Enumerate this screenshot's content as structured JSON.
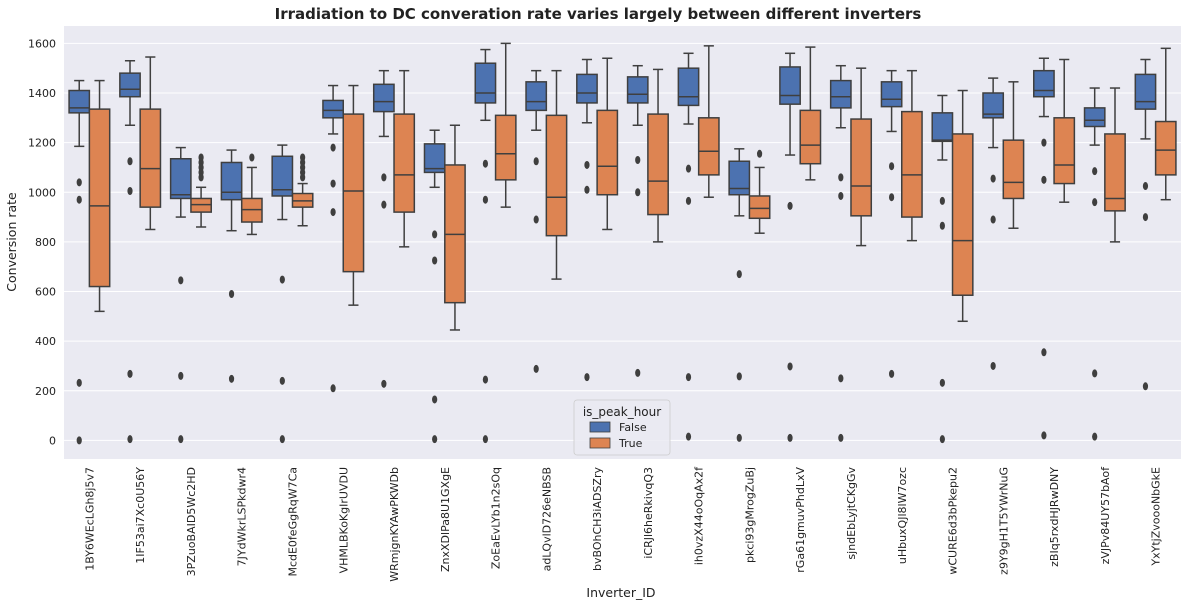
{
  "chart_data": {
    "type": "boxplot",
    "title": "Irradiation to DC converation rate varies largely between different inverters",
    "xlabel": "Inverter_ID",
    "ylabel": "Conversion rate",
    "ylim": [
      -75,
      1670
    ],
    "yticks": [
      0,
      200,
      400,
      600,
      800,
      1000,
      1200,
      1400,
      1600
    ],
    "grid": true,
    "legend": {
      "title": "is_peak_hour",
      "placement": "bottom-center",
      "entries": [
        {
          "name": "False",
          "color": "#4c72b0"
        },
        {
          "name": "True",
          "color": "#dd8452"
        }
      ]
    },
    "categories": [
      "1BY6WEcLGh8j5v7",
      "1IF53ai7Xc0U56Y",
      "3PZuoBAID5Wc2HD",
      "7JYdWkrLSPkdwr4",
      "McdE0feGgRqW7Ca",
      "VHMLBKoKgIrUVDU",
      "WRmjgnKYAwPKWDb",
      "ZnxXDlPa8U1GXgE",
      "ZoEaEvLYb1n2sOq",
      "adLQvlD726eNBSB",
      "bvBOhCH3iADSZry",
      "iCRJl6heRkivqQ3",
      "ih0vzX44oOqAx2f",
      "pkci93gMrogZuBj",
      "rGa61gmuvPhdLxV",
      "sjndEbLyjtCKgGv",
      "uHbuxQJl8lW7ozc",
      "wCURE6d3bPkepu2",
      "z9Y9gH1T5YWrNuG",
      "zBIq5rxdHJRwDNY",
      "zVJPv84UY57bAof",
      "YxYtjZvoooNbGkE"
    ],
    "series": [
      {
        "name": "False",
        "color": "#4c72b0",
        "boxes": [
          {
            "q1": 1320,
            "median": 1340,
            "q3": 1410,
            "whislo": 1185,
            "whishi": 1450,
            "fliers": [
              1040,
              970,
              232,
              0
            ]
          },
          {
            "q1": 1385,
            "median": 1415,
            "q3": 1480,
            "whislo": 1270,
            "whishi": 1530,
            "fliers": [
              1125,
              1005,
              268,
              5
            ]
          },
          {
            "q1": 975,
            "median": 990,
            "q3": 1135,
            "whislo": 900,
            "whishi": 1180,
            "fliers": [
              645,
              260,
              5
            ]
          },
          {
            "q1": 970,
            "median": 1000,
            "q3": 1120,
            "whislo": 845,
            "whishi": 1170,
            "fliers": [
              590,
              248
            ]
          },
          {
            "q1": 985,
            "median": 1010,
            "q3": 1145,
            "whislo": 890,
            "whishi": 1190,
            "fliers": [
              648,
              240,
              5
            ]
          },
          {
            "q1": 1300,
            "median": 1330,
            "q3": 1370,
            "whislo": 1235,
            "whishi": 1430,
            "fliers": [
              1180,
              1035,
              920,
              210
            ]
          },
          {
            "q1": 1325,
            "median": 1365,
            "q3": 1435,
            "whislo": 1225,
            "whishi": 1490,
            "fliers": [
              1060,
              950,
              228
            ]
          },
          {
            "q1": 1080,
            "median": 1095,
            "q3": 1195,
            "whislo": 1020,
            "whishi": 1250,
            "fliers": [
              830,
              725,
              165,
              5
            ]
          },
          {
            "q1": 1360,
            "median": 1400,
            "q3": 1520,
            "whislo": 1290,
            "whishi": 1575,
            "fliers": [
              1115,
              970,
              245,
              5
            ]
          },
          {
            "q1": 1330,
            "median": 1365,
            "q3": 1445,
            "whislo": 1250,
            "whishi": 1490,
            "fliers": [
              1125,
              890,
              288
            ]
          },
          {
            "q1": 1360,
            "median": 1400,
            "q3": 1475,
            "whislo": 1280,
            "whishi": 1535,
            "fliers": [
              1110,
              1010,
              255
            ]
          },
          {
            "q1": 1360,
            "median": 1395,
            "q3": 1465,
            "whislo": 1270,
            "whishi": 1510,
            "fliers": [
              1130,
              1000,
              272
            ]
          },
          {
            "q1": 1350,
            "median": 1385,
            "q3": 1500,
            "whislo": 1275,
            "whishi": 1560,
            "fliers": [
              1095,
              965,
              255,
              15
            ]
          },
          {
            "q1": 990,
            "median": 1015,
            "q3": 1125,
            "whislo": 905,
            "whishi": 1175,
            "fliers": [
              670,
              258,
              10
            ]
          },
          {
            "q1": 1355,
            "median": 1390,
            "q3": 1505,
            "whislo": 1150,
            "whishi": 1560,
            "fliers": [
              945,
              298,
              10
            ]
          },
          {
            "q1": 1340,
            "median": 1385,
            "q3": 1450,
            "whislo": 1260,
            "whishi": 1510,
            "fliers": [
              1060,
              985,
              250,
              10
            ]
          },
          {
            "q1": 1345,
            "median": 1375,
            "q3": 1445,
            "whislo": 1245,
            "whishi": 1490,
            "fliers": [
              1105,
              980,
              268
            ]
          },
          {
            "q1": 1205,
            "median": 1210,
            "q3": 1320,
            "whislo": 1130,
            "whishi": 1390,
            "fliers": [
              965,
              865,
              232,
              5
            ]
          },
          {
            "q1": 1300,
            "median": 1315,
            "q3": 1400,
            "whislo": 1180,
            "whishi": 1460,
            "fliers": [
              1055,
              890,
              300
            ]
          },
          {
            "q1": 1385,
            "median": 1410,
            "q3": 1490,
            "whislo": 1305,
            "whishi": 1540,
            "fliers": [
              1200,
              1050,
              355,
              20
            ]
          },
          {
            "q1": 1265,
            "median": 1290,
            "q3": 1340,
            "whislo": 1190,
            "whishi": 1420,
            "fliers": [
              1085,
              960,
              270,
              15
            ]
          },
          {
            "q1": 1335,
            "median": 1365,
            "q3": 1475,
            "whislo": 1215,
            "whishi": 1535,
            "fliers": [
              1025,
              900,
              218
            ]
          }
        ]
      },
      {
        "name": "True",
        "color": "#dd8452",
        "boxes": [
          {
            "q1": 620,
            "median": 945,
            "q3": 1335,
            "whislo": 520,
            "whishi": 1450,
            "fliers": []
          },
          {
            "q1": 940,
            "median": 1095,
            "q3": 1335,
            "whislo": 850,
            "whishi": 1545,
            "fliers": []
          },
          {
            "q1": 920,
            "median": 950,
            "q3": 975,
            "whislo": 860,
            "whishi": 1020,
            "fliers": [
              1140,
              1120,
              1100,
              1080,
              1060
            ]
          },
          {
            "q1": 880,
            "median": 930,
            "q3": 975,
            "whislo": 830,
            "whishi": 1100,
            "fliers": [
              1140
            ]
          },
          {
            "q1": 940,
            "median": 965,
            "q3": 995,
            "whislo": 865,
            "whishi": 1035,
            "fliers": [
              1140,
              1120,
              1100,
              1080,
              1060
            ]
          },
          {
            "q1": 680,
            "median": 1005,
            "q3": 1315,
            "whislo": 545,
            "whishi": 1430,
            "fliers": []
          },
          {
            "q1": 920,
            "median": 1070,
            "q3": 1315,
            "whislo": 780,
            "whishi": 1490,
            "fliers": []
          },
          {
            "q1": 555,
            "median": 830,
            "q3": 1110,
            "whislo": 445,
            "whishi": 1270,
            "fliers": []
          },
          {
            "q1": 1050,
            "median": 1155,
            "q3": 1310,
            "whislo": 940,
            "whishi": 1600,
            "fliers": []
          },
          {
            "q1": 825,
            "median": 980,
            "q3": 1310,
            "whislo": 650,
            "whishi": 1490,
            "fliers": []
          },
          {
            "q1": 990,
            "median": 1105,
            "q3": 1330,
            "whislo": 850,
            "whishi": 1540,
            "fliers": []
          },
          {
            "q1": 910,
            "median": 1045,
            "q3": 1315,
            "whislo": 800,
            "whishi": 1495,
            "fliers": []
          },
          {
            "q1": 1070,
            "median": 1165,
            "q3": 1300,
            "whislo": 980,
            "whishi": 1590,
            "fliers": []
          },
          {
            "q1": 895,
            "median": 935,
            "q3": 985,
            "whislo": 835,
            "whishi": 1100,
            "fliers": [
              1155
            ]
          },
          {
            "q1": 1115,
            "median": 1190,
            "q3": 1330,
            "whislo": 1050,
            "whishi": 1585,
            "fliers": []
          },
          {
            "q1": 905,
            "median": 1025,
            "q3": 1295,
            "whislo": 785,
            "whishi": 1500,
            "fliers": []
          },
          {
            "q1": 900,
            "median": 1070,
            "q3": 1325,
            "whislo": 805,
            "whishi": 1490,
            "fliers": []
          },
          {
            "q1": 585,
            "median": 805,
            "q3": 1235,
            "whislo": 480,
            "whishi": 1410,
            "fliers": []
          },
          {
            "q1": 975,
            "median": 1040,
            "q3": 1210,
            "whislo": 855,
            "whishi": 1445,
            "fliers": []
          },
          {
            "q1": 1035,
            "median": 1110,
            "q3": 1300,
            "whislo": 960,
            "whishi": 1535,
            "fliers": []
          },
          {
            "q1": 925,
            "median": 975,
            "q3": 1235,
            "whislo": 800,
            "whishi": 1420,
            "fliers": []
          },
          {
            "q1": 1070,
            "median": 1170,
            "q3": 1285,
            "whislo": 970,
            "whishi": 1580,
            "fliers": []
          }
        ]
      }
    ]
  }
}
